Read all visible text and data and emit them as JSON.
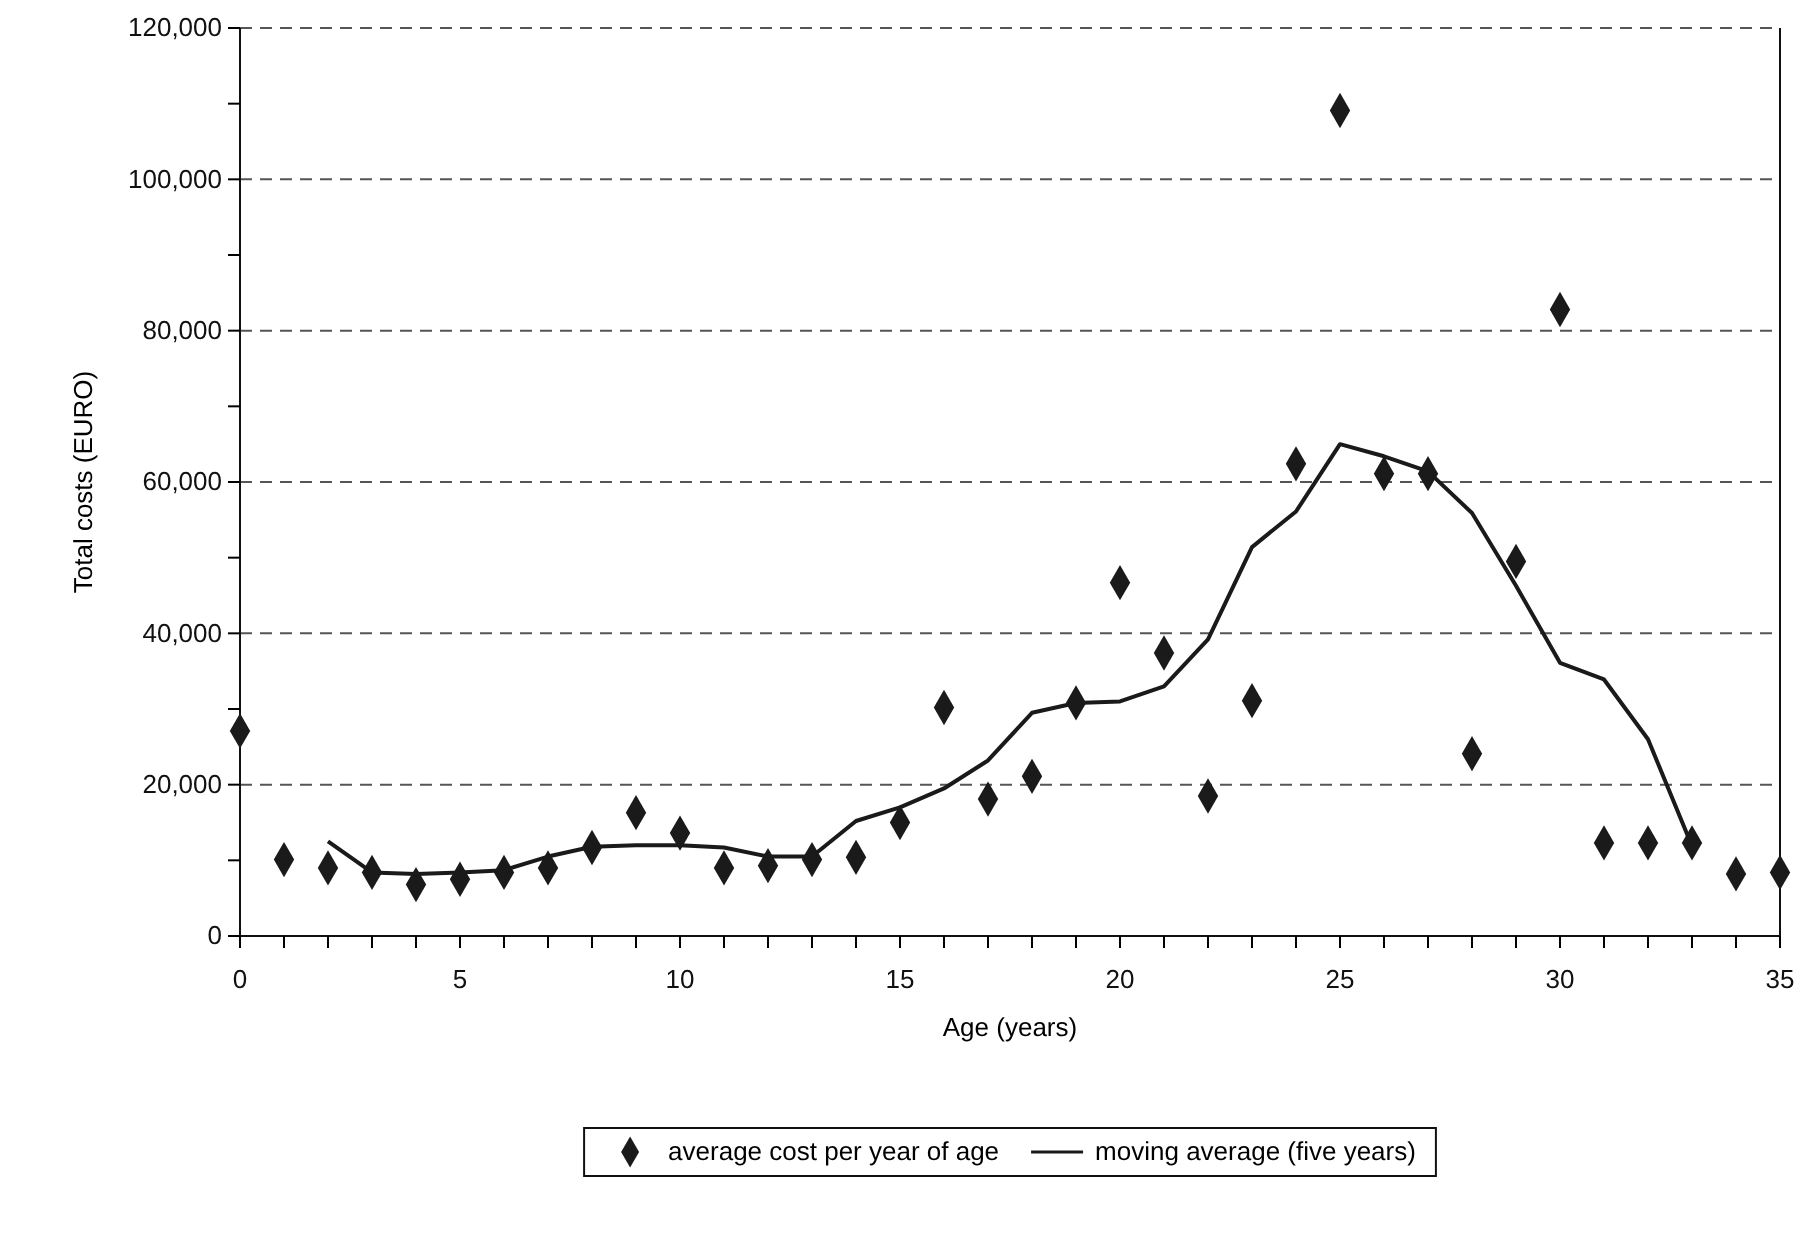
{
  "chart_data": {
    "type": "scatter",
    "xlabel": "Age (years)",
    "ylabel": "Total costs (EURO)",
    "xlim": [
      0,
      35
    ],
    "xticks": [
      0,
      {
        "value": 1,
        "label": null
      },
      {
        "value": 2,
        "label": null
      },
      {
        "value": 3,
        "label": null
      },
      {
        "value": 4,
        "label": null
      },
      5,
      {
        "value": 6,
        "label": null
      },
      {
        "value": 7,
        "label": null
      },
      {
        "value": 8,
        "label": null
      },
      {
        "value": 9,
        "label": null
      },
      10,
      {
        "value": 11,
        "label": null
      },
      {
        "value": 12,
        "label": null
      },
      {
        "value": 13,
        "label": null
      },
      {
        "value": 14,
        "label": null
      },
      15,
      {
        "value": 16,
        "label": null
      },
      {
        "value": 17,
        "label": null
      },
      {
        "value": 18,
        "label": null
      },
      {
        "value": 19,
        "label": null
      },
      20,
      {
        "value": 21,
        "label": null
      },
      {
        "value": 22,
        "label": null
      },
      {
        "value": 23,
        "label": null
      },
      {
        "value": 24,
        "label": null
      },
      25,
      {
        "value": 26,
        "label": null
      },
      {
        "value": 27,
        "label": null
      },
      {
        "value": 28,
        "label": null
      },
      {
        "value": 29,
        "label": null
      },
      30,
      {
        "value": 31,
        "label": null
      },
      {
        "value": 32,
        "label": null
      },
      {
        "value": 33,
        "label": null
      },
      {
        "value": 34,
        "label": null
      },
      35
    ],
    "ylim": [
      0,
      120000
    ],
    "yticks": [
      {
        "value": 0,
        "label": "0"
      },
      {
        "value": 10000,
        "label": null
      },
      {
        "value": 20000,
        "label": "20,000"
      },
      {
        "value": 30000,
        "label": null
      },
      {
        "value": 40000,
        "label": "40,000"
      },
      {
        "value": 50000,
        "label": null
      },
      {
        "value": 60000,
        "label": "60,000"
      },
      {
        "value": 70000,
        "label": null
      },
      {
        "value": 80000,
        "label": "80,000"
      },
      {
        "value": 90000,
        "label": null
      },
      {
        "value": 100000,
        "label": "100,000"
      },
      {
        "value": 110000,
        "label": null
      },
      {
        "value": 120000,
        "label": "120,000"
      }
    ],
    "grid": "y",
    "legend": "bottom",
    "series": [
      {
        "name": "average cost per year of age",
        "marker": "diamond",
        "color": "#1a1a1a",
        "x": [
          0,
          1,
          2,
          3,
          4,
          5,
          6,
          7,
          8,
          9,
          10,
          11,
          12,
          13,
          14,
          15,
          16,
          17,
          18,
          19,
          20,
          21,
          22,
          23,
          24,
          25,
          26,
          27,
          28,
          29,
          30,
          31,
          32,
          33,
          34,
          35
        ],
        "values": [
          27100,
          10100,
          9000,
          8400,
          6800,
          7500,
          8400,
          9000,
          11700,
          16300,
          13600,
          9000,
          9300,
          10100,
          10400,
          15000,
          30200,
          18100,
          21100,
          30800,
          46700,
          37400,
          18500,
          31100,
          62400,
          109100,
          61100,
          61100,
          24100,
          49500,
          82800,
          12300,
          12300,
          12300,
          8200,
          8400
        ]
      },
      {
        "name": "moving average (five years)",
        "type": "line",
        "marker": "none",
        "line_style": "solid",
        "color": "#1a1a1a",
        "x": [
          2,
          3,
          4,
          5,
          6,
          7,
          8,
          9,
          10,
          11,
          12,
          13,
          14,
          15,
          16,
          17,
          18,
          19,
          20,
          21,
          22,
          23,
          24,
          25,
          26,
          27,
          28,
          29,
          30,
          31,
          32,
          33
        ],
        "values": [
          12500,
          8400,
          8200,
          8400,
          8700,
          10500,
          11800,
          12000,
          12000,
          11700,
          10500,
          10500,
          15200,
          17000,
          19500,
          23200,
          29500,
          30800,
          31000,
          33000,
          39200,
          51400,
          56100,
          65000,
          63400,
          61400,
          55900,
          46300,
          36100,
          33900,
          26000,
          11900
        ]
      }
    ]
  }
}
